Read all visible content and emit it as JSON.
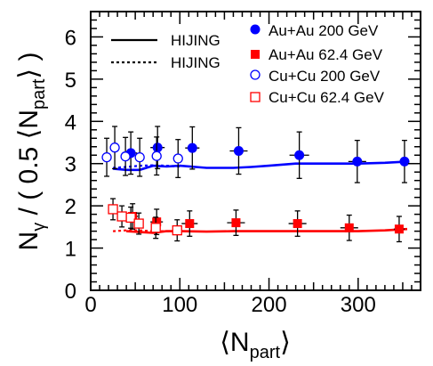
{
  "chart_data": {
    "type": "scatter",
    "title": "",
    "ylabel": {
      "main": "N",
      "sub1": "γ",
      "mid": " / ( 0.5 ⟨N",
      "sub2": "part",
      "end": "⟩ )"
    },
    "xlabel": {
      "main": "⟨N",
      "sub": "part",
      "end": "⟩"
    },
    "xlim": [
      0,
      370
    ],
    "ylim": [
      0,
      6.6
    ],
    "xticks": [
      0,
      100,
      200,
      300
    ],
    "yticks": [
      0,
      1,
      2,
      3,
      4,
      5,
      6
    ],
    "grid": false,
    "legend": {
      "placement": "top-right",
      "entries": [
        {
          "label": "Au+Au 200 GeV",
          "marker": "filled-circle",
          "color": "#0000ff"
        },
        {
          "label": "Au+Au 62.4 GeV",
          "marker": "filled-square",
          "color": "#ff0000"
        },
        {
          "label": "Cu+Cu 200 GeV",
          "marker": "open-circle",
          "color": "#0000ff"
        },
        {
          "label": "Cu+Cu 62.4 GeV",
          "marker": "open-square",
          "color": "#ff0000"
        }
      ],
      "line_entries": [
        {
          "label": "HIJING",
          "style": "solid"
        },
        {
          "label": "HIJING",
          "style": "dotted"
        }
      ]
    },
    "series": [
      {
        "name": "Au+Au 200 GeV",
        "marker": "filled-circle",
        "color": "#0000ff",
        "points": [
          {
            "x": 45,
            "y": 3.25,
            "xerr": 7,
            "yerr": 0.5
          },
          {
            "x": 75,
            "y": 3.38,
            "xerr": 8,
            "yerr": 0.5
          },
          {
            "x": 114,
            "y": 3.37,
            "xerr": 8,
            "yerr": 0.5
          },
          {
            "x": 166,
            "y": 3.3,
            "xerr": 10,
            "yerr": 0.55
          },
          {
            "x": 234,
            "y": 3.2,
            "xerr": 11,
            "yerr": 0.55
          },
          {
            "x": 299,
            "y": 3.05,
            "xerr": 10,
            "yerr": 0.5
          },
          {
            "x": 352,
            "y": 3.05,
            "xerr": 5,
            "yerr": 0.5
          }
        ]
      },
      {
        "name": "Au+Au 62.4 GeV",
        "marker": "filled-square",
        "color": "#ff0000",
        "points": [
          {
            "x": 47,
            "y": 1.75,
            "xerr": 6,
            "yerr": 0.3
          },
          {
            "x": 74,
            "y": 1.62,
            "xerr": 7,
            "yerr": 0.3
          },
          {
            "x": 111,
            "y": 1.58,
            "xerr": 9,
            "yerr": 0.3
          },
          {
            "x": 163,
            "y": 1.6,
            "xerr": 10,
            "yerr": 0.3
          },
          {
            "x": 232,
            "y": 1.58,
            "xerr": 10,
            "yerr": 0.3
          },
          {
            "x": 290,
            "y": 1.48,
            "xerr": 10,
            "yerr": 0.3
          },
          {
            "x": 346,
            "y": 1.45,
            "xerr": 6,
            "yerr": 0.3
          }
        ]
      },
      {
        "name": "Cu+Cu 200 GeV",
        "marker": "open-circle",
        "color": "#0000ff",
        "points": [
          {
            "x": 18,
            "y": 3.15,
            "xerr": 3,
            "yerr": 0.45
          },
          {
            "x": 27,
            "y": 3.38,
            "xerr": 4,
            "yerr": 0.5
          },
          {
            "x": 39,
            "y": 3.17,
            "xerr": 4,
            "yerr": 0.45
          },
          {
            "x": 55,
            "y": 3.15,
            "xerr": 5,
            "yerr": 0.45
          },
          {
            "x": 74,
            "y": 3.18,
            "xerr": 5,
            "yerr": 0.45
          },
          {
            "x": 98,
            "y": 3.12,
            "xerr": 5,
            "yerr": 0.45
          }
        ]
      },
      {
        "name": "Cu+Cu 62.4 GeV",
        "marker": "open-square",
        "color": "#ff0000",
        "points": [
          {
            "x": 25,
            "y": 1.92,
            "xerr": 3,
            "yerr": 0.25
          },
          {
            "x": 35,
            "y": 1.75,
            "xerr": 4,
            "yerr": 0.25
          },
          {
            "x": 45,
            "y": 1.72,
            "xerr": 4,
            "yerr": 0.25
          },
          {
            "x": 54,
            "y": 1.58,
            "xerr": 5,
            "yerr": 0.25
          },
          {
            "x": 73,
            "y": 1.48,
            "xerr": 5,
            "yerr": 0.25
          },
          {
            "x": 97,
            "y": 1.42,
            "xerr": 5,
            "yerr": 0.25
          }
        ]
      }
    ],
    "curves": [
      {
        "label": "HIJING",
        "style": "solid",
        "color": "#0000ff",
        "x": [
          25,
          40,
          55,
          70,
          85,
          100,
          130,
          160,
          180,
          200,
          230,
          260,
          300,
          330,
          355
        ],
        "y": [
          2.88,
          2.85,
          2.85,
          2.95,
          2.93,
          2.95,
          2.9,
          2.9,
          2.92,
          2.95,
          3.0,
          3.0,
          3.0,
          3.02,
          3.05
        ]
      },
      {
        "label": "HIJING",
        "style": "dotted",
        "color": "#0000ff",
        "x": [
          25,
          40,
          55,
          70,
          85,
          100
        ],
        "y": [
          2.9,
          2.92,
          2.95,
          2.96,
          2.95,
          2.93
        ]
      },
      {
        "label": "HIJING",
        "style": "solid",
        "color": "#ff0000",
        "x": [
          40,
          55,
          70,
          85,
          100,
          130,
          160,
          200,
          230,
          260,
          300,
          330,
          355
        ],
        "y": [
          1.4,
          1.38,
          1.36,
          1.4,
          1.4,
          1.39,
          1.4,
          1.4,
          1.4,
          1.4,
          1.4,
          1.42,
          1.45
        ]
      },
      {
        "label": "HIJING",
        "style": "dotted",
        "color": "#ff0000",
        "x": [
          25,
          40,
          55,
          70,
          85,
          100
        ],
        "y": [
          1.4,
          1.42,
          1.42,
          1.4,
          1.4,
          1.4
        ]
      }
    ]
  }
}
